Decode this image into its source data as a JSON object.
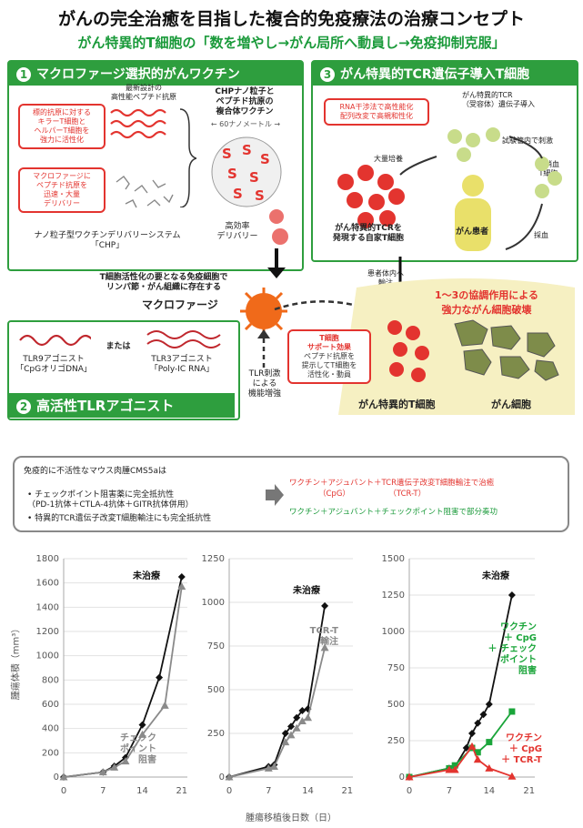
{
  "header": {
    "title": "がんの完全治癒を目指した複合的免疫療法の治療コンセプト",
    "subtitle": "がん特異的T細胞の「数を増やし→がん局所へ動員し→免疫抑制克服」"
  },
  "panel1": {
    "num": "1",
    "title": "マクロファージ選択的がんワクチン",
    "peptide_label": "最新設計の\n高性能ペプチド抗原",
    "callout_top": "標的抗原に対する\nキラーT細胞と\nヘルパーT細胞を\n強力に活性化",
    "callout_bottom": "マクロファージに\nペプチド抗原を\n迅速・大量\nデリバリー",
    "chp_label": "CHPナノ粒子と\nペプチド抗原の\n複合体ワクチン",
    "scale_label": "← 60ナノメートル →",
    "system_label": "ナノ粒子型ワクチンデリバリーシステム\n「CHP」",
    "delivery_label": "高効率\nデリバリー"
  },
  "panel3": {
    "num": "3",
    "title": "がん特異的TCR遺伝子導入T細胞",
    "callout": "RNA干渉法で高性能化\n配列改変で高親和性化",
    "tcr_label": "がん特異的TCR\n（受容体）遺伝子導入",
    "stim_label": "試験管内で刺激",
    "mass_label": "大量培養",
    "peripheral_label": "末梢血\nT細胞",
    "auto_label": "がん特異的TCRを\n発現する自家T細胞",
    "patient_label": "がん患者",
    "blood_label": "採血"
  },
  "center": {
    "macrophage_desc": "T細胞活性化の要となる免疫細胞で\nリンパ節・がん組織に存在する",
    "macrophage_label": "マクロファージ",
    "infusion_label": "患者体内へ\n輸注",
    "tlr_stim": "TLR刺激\nによる\n機能増強",
    "support_title": "T細胞\nサポート効果",
    "support_desc": "ペプチド抗原を\n提示してT細胞を\n活性化・動員",
    "synergy": "1～3の協調作用による\n強力ながん細胞破壊",
    "tcell_label": "がん特異的T細胞",
    "cancer_label": "がん細胞"
  },
  "panel2": {
    "num": "2",
    "title": "高活性TLRアゴニスト",
    "tlr9": "TLR9アゴニスト\n「CpGオリゴDNA」",
    "or": "または",
    "tlr3": "TLR3アゴニスト\n「Poly-IC RNA」"
  },
  "summary": {
    "intro": "免疫的に不活性なマウス肉腫CMS5aは",
    "bullet1": "チェックポイント阻害薬に完全抵抗性\n（PD-1抗体＋CTLA-4抗体＋GITR抗体併用）",
    "bullet2": "特異的TCR遺伝子改変T細胞輸注にも完全抵抗性",
    "result1": "ワクチン＋アジュバント＋TCR遺伝子改変T細胞輸注で治癒",
    "result1_sub": "（CpG）　　　　　　（TCR-T）",
    "result2": "ワクチン＋アジュバント＋チェックポイント阻害で部分奏功"
  },
  "axes": {
    "ylabel": "腫瘍体積（mm³）",
    "xlabel": "腫瘍移植後日数（日）"
  },
  "chart_data": [
    {
      "type": "line",
      "ylim": [
        0,
        1800
      ],
      "yticks": [
        0,
        200,
        400,
        600,
        800,
        1000,
        1200,
        1400,
        1600,
        1800
      ],
      "xticks": [
        0,
        7,
        14,
        21
      ],
      "xlim": [
        0,
        22
      ],
      "series": [
        {
          "name": "未治療",
          "color": "#111111",
          "marker": "diamond",
          "x": [
            0,
            7,
            9,
            11,
            14,
            17,
            21
          ],
          "y": [
            0,
            40,
            90,
            160,
            430,
            820,
            1650
          ]
        },
        {
          "name": "チェック\nポイント\n阻害",
          "color": "#8a8a8a",
          "marker": "triangle",
          "x": [
            0,
            7,
            9,
            11,
            14,
            18,
            21
          ],
          "y": [
            0,
            40,
            80,
            130,
            350,
            590,
            1570
          ]
        }
      ]
    },
    {
      "type": "line",
      "ylim": [
        0,
        1250
      ],
      "yticks": [
        0,
        250,
        500,
        750,
        1000,
        1250
      ],
      "xticks": [
        0,
        7,
        14,
        21
      ],
      "xlim": [
        0,
        22
      ],
      "series": [
        {
          "name": "未治療",
          "color": "#111111",
          "marker": "diamond",
          "x": [
            0,
            7,
            8,
            10,
            11,
            12,
            13,
            14,
            17
          ],
          "y": [
            0,
            60,
            70,
            250,
            290,
            340,
            380,
            390,
            980
          ]
        },
        {
          "name": "TCR-T\n輸注",
          "color": "#8a8a8a",
          "marker": "triangle",
          "x": [
            0,
            7,
            8,
            10,
            11,
            12,
            13,
            14,
            17
          ],
          "y": [
            0,
            50,
            60,
            200,
            240,
            280,
            320,
            340,
            740
          ]
        }
      ]
    },
    {
      "type": "line",
      "ylim": [
        0,
        1500
      ],
      "yticks": [
        0,
        250,
        500,
        750,
        1000,
        1250,
        1500
      ],
      "xticks": [
        0,
        7,
        14,
        21
      ],
      "xlim": [
        0,
        22
      ],
      "series": [
        {
          "name": "未治療",
          "color": "#111111",
          "marker": "diamond",
          "x": [
            0,
            7,
            8,
            10,
            11,
            12,
            13,
            14,
            18
          ],
          "y": [
            0,
            60,
            70,
            200,
            300,
            370,
            430,
            500,
            1250
          ]
        },
        {
          "name": "ワクチン\n＋ CpG\n＋ チェック\nポイント\n阻害",
          "color": "#1aa53a",
          "marker": "square",
          "x": [
            0,
            7,
            8,
            11,
            12,
            14,
            18
          ],
          "y": [
            0,
            60,
            80,
            200,
            170,
            240,
            450
          ]
        },
        {
          "name": "ワクチン\n＋ CpG\n＋ TCR-T",
          "color": "#e3342f",
          "marker": "triangle",
          "x": [
            0,
            7,
            8,
            11,
            12,
            14,
            18
          ],
          "y": [
            0,
            50,
            50,
            210,
            120,
            60,
            5
          ]
        }
      ]
    }
  ]
}
